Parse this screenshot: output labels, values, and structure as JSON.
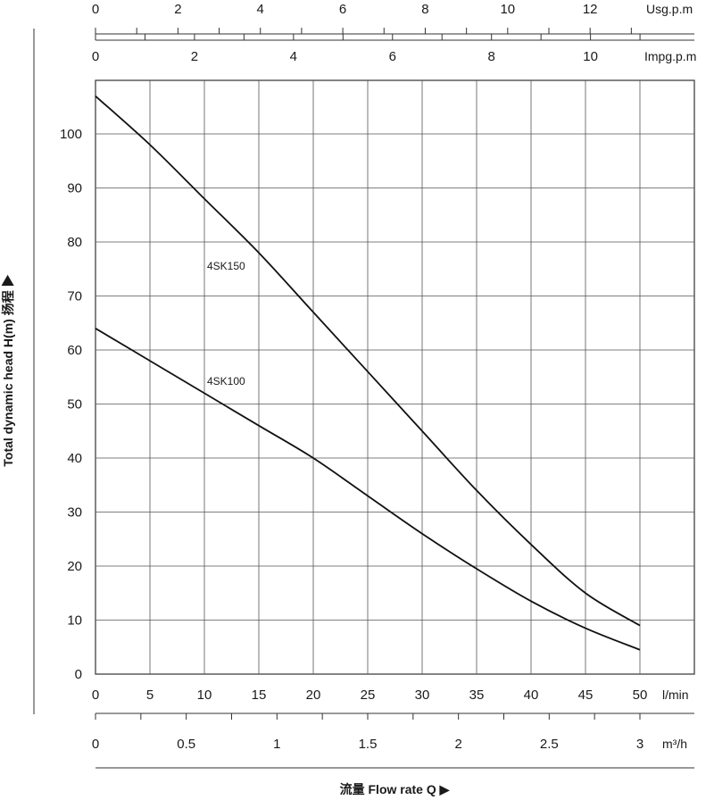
{
  "chart_data": {
    "type": "line",
    "ylabel": "Total dynamic head H(m) 扬程 ▶",
    "xlabel": "流量 Flow rate Q ▶",
    "ylim": [
      0,
      110
    ],
    "xlim": [
      0,
      55
    ],
    "grid": true,
    "y_ticks": [
      "0",
      "10",
      "20",
      "30",
      "40",
      "50",
      "60",
      "70",
      "80",
      "90",
      "100"
    ],
    "x_axes": {
      "lmin": {
        "unit": "l/min",
        "ticks": [
          "0",
          "5",
          "10",
          "15",
          "20",
          "25",
          "30",
          "35",
          "40",
          "45",
          "50"
        ]
      },
      "m3h": {
        "unit": "m³/h",
        "ticks": [
          "0",
          "0.5",
          "1",
          "1.5",
          "2",
          "2.5",
          "3"
        ]
      },
      "usgpm": {
        "unit": "Usg.p.m",
        "ticks": [
          "0",
          "2",
          "4",
          "6",
          "8",
          "10",
          "12"
        ]
      },
      "impgpm": {
        "unit": "Impg.p.m",
        "ticks": [
          "0",
          "2",
          "4",
          "6",
          "8",
          "10"
        ]
      }
    },
    "series": [
      {
        "name": "4SK150",
        "x": [
          0,
          5,
          10,
          15,
          20,
          25,
          30,
          35,
          40,
          45,
          50
        ],
        "y": [
          107,
          98,
          88,
          78,
          67,
          56,
          45,
          34,
          24,
          15,
          9
        ]
      },
      {
        "name": "4SK100",
        "x": [
          0,
          5,
          10,
          15,
          20,
          25,
          30,
          35,
          40,
          45,
          50
        ],
        "y": [
          64,
          58,
          52,
          46,
          40,
          33,
          26,
          19.5,
          13.5,
          8.5,
          4.5
        ]
      }
    ]
  }
}
